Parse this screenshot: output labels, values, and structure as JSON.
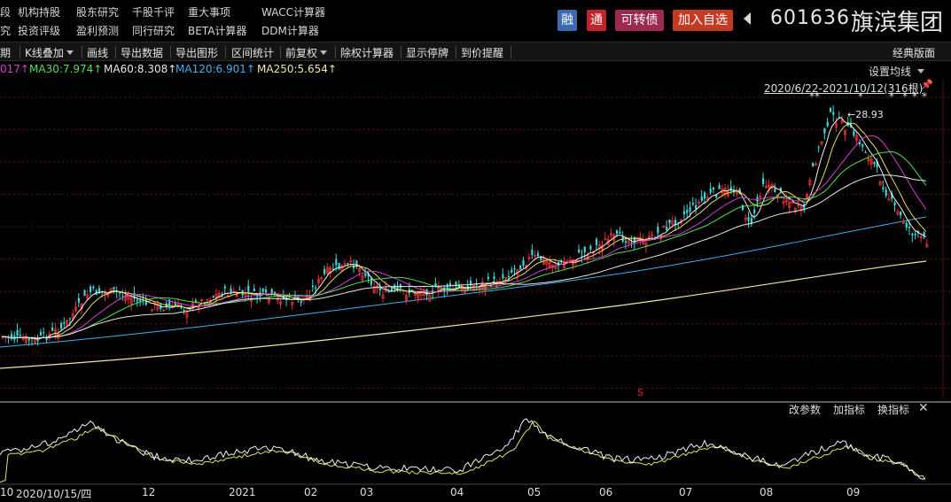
{
  "nav": {
    "row1": [
      "段",
      "机构持股",
      "股东研究",
      "千股千评",
      "重大事项",
      "WACC计算器"
    ],
    "row2": [
      "究",
      "投资评级",
      "盈利预测",
      "同行研究",
      "BETA计算器",
      "DDM计算器"
    ]
  },
  "header": {
    "badges": [
      {
        "label": "融",
        "color": "#3b6ab0"
      },
      {
        "label": "通",
        "color": "#c0242a"
      },
      {
        "label": "可转债",
        "color": "#9d2a4e"
      },
      {
        "label": "加入自选",
        "color": "#c43a22"
      }
    ],
    "code": "601636",
    "name": "旗滨集团"
  },
  "toolbar": {
    "items": [
      "期",
      "K线叠加",
      "画线",
      "导出数据",
      "导出图形",
      "区间统计",
      "前复权",
      "除权计算器",
      "显示停牌",
      "到价提醒"
    ],
    "right": "经典版面"
  },
  "ma_legend": {
    "items": [
      {
        "text": "017↑",
        "color": "#d040d0"
      },
      {
        "text": "MA30:7.974↑",
        "color": "#50e050"
      },
      {
        "text": "MA60:8.308↑",
        "color": "#e8e8e8"
      },
      {
        "text": "MA120:6.901↑",
        "color": "#40b0f0"
      },
      {
        "text": "MA250:5.654↑",
        "color": "#f0e8a0"
      }
    ],
    "setting": "设置均线"
  },
  "range_label": "2020/6/22-2021/10/12(316根)",
  "peak_label": "28.93",
  "s_marker": "S",
  "sub_tools": [
    "改参数",
    "加指标",
    "换指标"
  ],
  "x_axis": [
    "10",
    "2020/10/15/四",
    "12",
    "2021",
    "02",
    "03",
    "04",
    "05",
    "06",
    "07",
    "08",
    "09"
  ],
  "colors": {
    "up": "#e03030",
    "down": "#3ad8d8",
    "grid": "#5a1010"
  }
}
